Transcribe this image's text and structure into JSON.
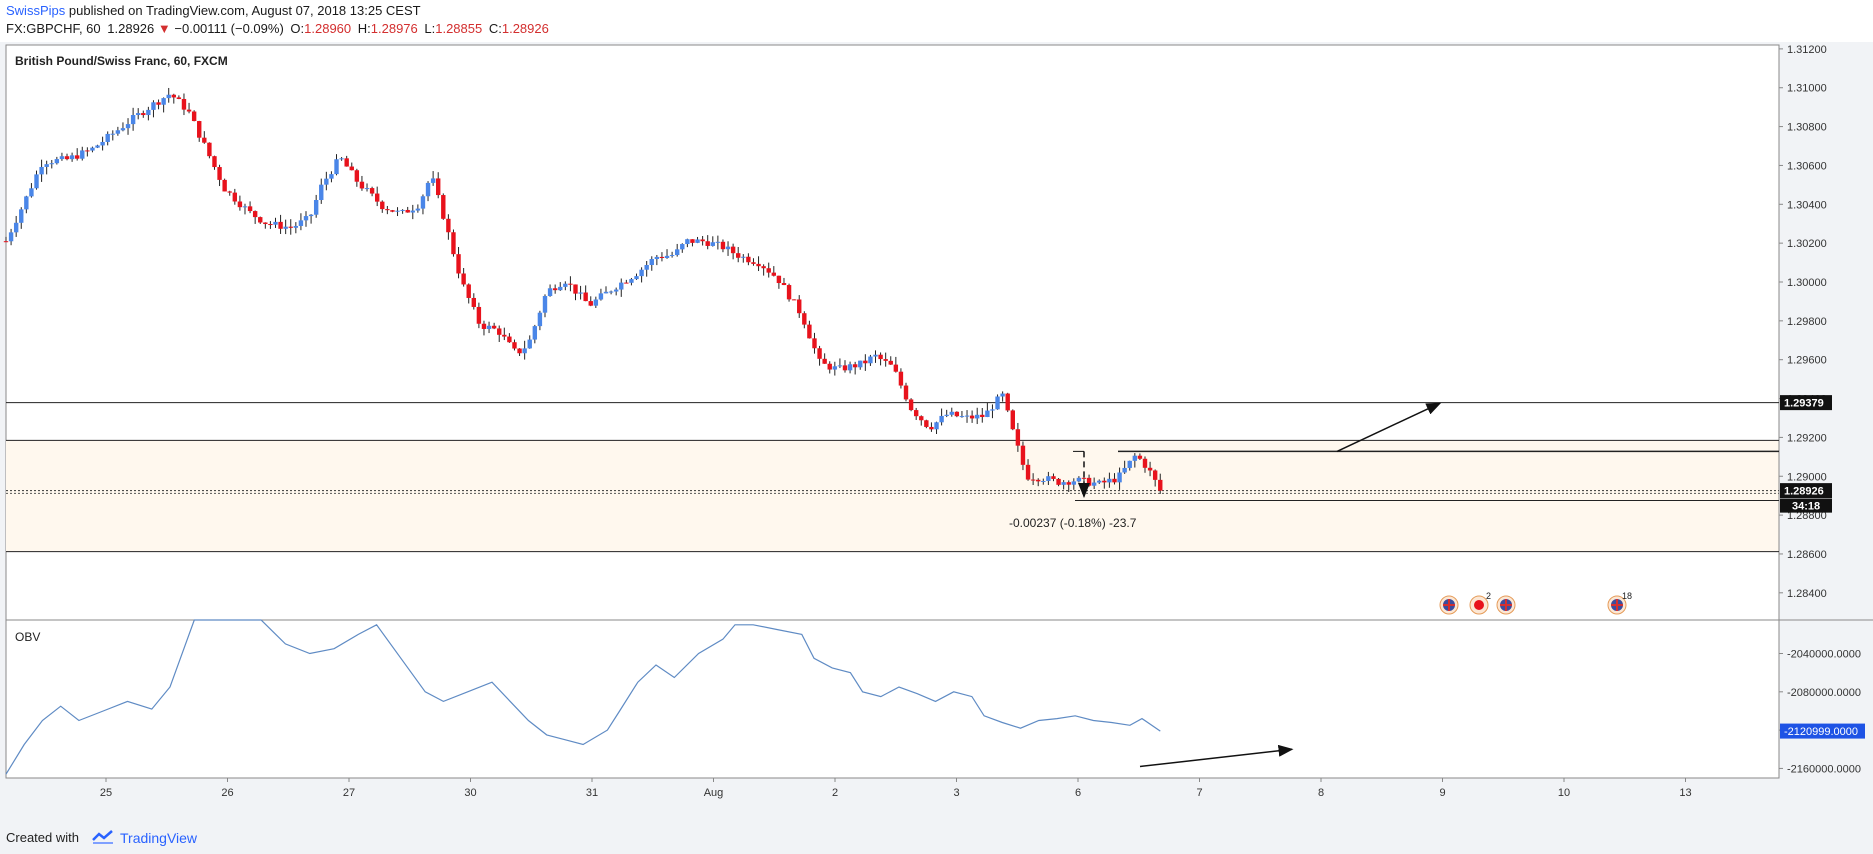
{
  "header": {
    "author": "SwissPips",
    "published_text": "published on TradingView.com, August 07, 2018 13:25 CEST",
    "symbol_line": "FX:GBPCHF, 60",
    "last": "1.28926",
    "arrow": "▼",
    "change": "−0.00111 (−0.09%)",
    "o_label": "O:",
    "o_value": "1.28960",
    "h_label": "H:",
    "h_value": "1.28976",
    "l_label": "L:",
    "l_value": "1.28855",
    "c_label": "C:",
    "c_value": "1.28926"
  },
  "pane_title": "British Pound/Swiss Franc, 60, FXCM",
  "obv_label": "OBV",
  "footer": {
    "created_with": "Created with",
    "brand": "TradingView"
  },
  "colors": {
    "up": "#4a86e8",
    "down": "#e8121c",
    "zone": "#fff8ee",
    "obv_line": "#5f8bc4",
    "highlight_label": "#1e53e5"
  },
  "chart_data": {
    "type": "candlestick",
    "title": "British Pound/Swiss Franc, 60, FXCM",
    "x_ticks": [
      "25",
      "26",
      "27",
      "30",
      "31",
      "Aug",
      "2",
      "3",
      "6",
      "7",
      "8",
      "9",
      "10",
      "13"
    ],
    "y_ticks": [
      "1.31200",
      "1.31000",
      "1.30800",
      "1.30600",
      "1.30400",
      "1.30200",
      "1.30000",
      "1.29800",
      "1.29600",
      "1.29400",
      "1.29200",
      "1.29000",
      "1.28800",
      "1.28600",
      "1.28400"
    ],
    "ylim": [
      1.2826,
      1.3122
    ],
    "price_levels": [
      1.29379,
      1.29185,
      1.29128,
      1.28926,
      1.28912,
      1.28875,
      1.28612
    ],
    "supply_zone": [
      1.28612,
      1.29185
    ],
    "price_label": "1.29379",
    "current_price_label": "1.28926",
    "countdown_label": "34:18",
    "measurement_label": "-0.00237 (-0.18%) -23.7",
    "event_badges": [
      "",
      "2",
      "",
      "18"
    ],
    "close_path": [
      [
        0,
        1.3021
      ],
      [
        0.15,
        1.3041
      ],
      [
        0.3,
        1.3062
      ],
      [
        0.5,
        1.3063
      ],
      [
        0.7,
        1.3068
      ],
      [
        1.0,
        1.3082
      ],
      [
        1.2,
        1.3091
      ],
      [
        1.35,
        1.3097
      ],
      [
        1.5,
        1.3088
      ],
      [
        1.65,
        1.3068
      ],
      [
        1.8,
        1.3048
      ],
      [
        2.0,
        1.3036
      ],
      [
        2.15,
        1.303
      ],
      [
        2.35,
        1.3028
      ],
      [
        2.5,
        1.3033
      ],
      [
        2.6,
        1.305
      ],
      [
        2.75,
        1.3064
      ],
      [
        2.9,
        1.3051
      ],
      [
        3.1,
        1.3039
      ],
      [
        3.25,
        1.3035
      ],
      [
        3.4,
        1.304
      ],
      [
        3.5,
        1.3055
      ],
      [
        3.6,
        1.3034
      ],
      [
        3.75,
        1.3
      ],
      [
        3.9,
        1.2978
      ],
      [
        4.05,
        1.2975
      ],
      [
        4.2,
        1.2963
      ],
      [
        4.3,
        1.2968
      ],
      [
        4.45,
        1.2995
      ],
      [
        4.6,
        1.3001
      ],
      [
        4.8,
        1.2988
      ],
      [
        5.0,
        1.2997
      ],
      [
        5.2,
        1.3005
      ],
      [
        5.35,
        1.3013
      ],
      [
        5.5,
        1.3014
      ],
      [
        5.6,
        1.3021
      ],
      [
        5.75,
        1.3021
      ],
      [
        5.9,
        1.3018
      ],
      [
        6.05,
        1.3013
      ],
      [
        6.2,
        1.301
      ],
      [
        6.35,
        1.3002
      ],
      [
        6.55,
        1.2983
      ],
      [
        6.7,
        1.2958
      ],
      [
        6.85,
        1.2955
      ],
      [
        7.05,
        1.2958
      ],
      [
        7.15,
        1.2962
      ],
      [
        7.3,
        1.2956
      ],
      [
        7.45,
        1.2935
      ],
      [
        7.6,
        1.2925
      ],
      [
        7.75,
        1.2932
      ],
      [
        7.9,
        1.293
      ],
      [
        8.05,
        1.2931
      ],
      [
        8.2,
        1.2942
      ],
      [
        8.3,
        1.292
      ],
      [
        8.4,
        1.29
      ],
      [
        8.55,
        1.2899
      ],
      [
        8.65,
        1.2897
      ],
      [
        8.8,
        1.2898
      ],
      [
        9.0,
        1.2896
      ],
      [
        9.15,
        1.2899
      ],
      [
        9.3,
        1.2911
      ],
      [
        9.4,
        1.2904
      ],
      [
        9.5,
        1.28926
      ]
    ],
    "obv": {
      "name": "OBV",
      "y_ticks": [
        "-2040000.0000",
        "-2080000.0000",
        "-2120000.0000",
        "-2160000.0000"
      ],
      "ylim": [
        -2170000,
        -2005000
      ],
      "current_label": "-2120999.0000",
      "path": [
        [
          0,
          -2166000
        ],
        [
          0.15,
          -2135000
        ],
        [
          0.3,
          -2110000
        ],
        [
          0.45,
          -2095000
        ],
        [
          0.6,
          -2110000
        ],
        [
          0.8,
          -2100000
        ],
        [
          1.0,
          -2090000
        ],
        [
          1.2,
          -2098000
        ],
        [
          1.35,
          -2075000
        ],
        [
          1.55,
          -2000000
        ],
        [
          1.7,
          -2000000
        ],
        [
          1.9,
          -2000000
        ],
        [
          2.1,
          -2000000
        ],
        [
          2.3,
          -2030000
        ],
        [
          2.5,
          -2040000
        ],
        [
          2.7,
          -2035000
        ],
        [
          2.9,
          -2020000
        ],
        [
          3.05,
          -2010000
        ],
        [
          3.25,
          -2045000
        ],
        [
          3.45,
          -2080000
        ],
        [
          3.6,
          -2090000
        ],
        [
          3.8,
          -2080000
        ],
        [
          4.0,
          -2070000
        ],
        [
          4.15,
          -2090000
        ],
        [
          4.3,
          -2110000
        ],
        [
          4.45,
          -2125000
        ],
        [
          4.6,
          -2130000
        ],
        [
          4.75,
          -2135000
        ],
        [
          4.95,
          -2120000
        ],
        [
          5.05,
          -2100000
        ],
        [
          5.2,
          -2070000
        ],
        [
          5.35,
          -2052000
        ],
        [
          5.5,
          -2065000
        ],
        [
          5.7,
          -2040000
        ],
        [
          5.9,
          -2025000
        ],
        [
          6.0,
          -2010000
        ],
        [
          6.15,
          -2010000
        ],
        [
          6.35,
          -2015000
        ],
        [
          6.55,
          -2020000
        ],
        [
          6.65,
          -2045000
        ],
        [
          6.8,
          -2055000
        ],
        [
          6.95,
          -2060000
        ],
        [
          7.05,
          -2080000
        ],
        [
          7.2,
          -2085000
        ],
        [
          7.35,
          -2075000
        ],
        [
          7.5,
          -2082000
        ],
        [
          7.65,
          -2090000
        ],
        [
          7.8,
          -2080000
        ],
        [
          7.95,
          -2085000
        ],
        [
          8.05,
          -2105000
        ],
        [
          8.2,
          -2112000
        ],
        [
          8.35,
          -2118000
        ],
        [
          8.5,
          -2110000
        ],
        [
          8.65,
          -2108000
        ],
        [
          8.8,
          -2105000
        ],
        [
          8.95,
          -2110000
        ],
        [
          9.1,
          -2112000
        ],
        [
          9.25,
          -2115000
        ],
        [
          9.35,
          -2108000
        ],
        [
          9.5,
          -2121000
        ]
      ]
    }
  }
}
